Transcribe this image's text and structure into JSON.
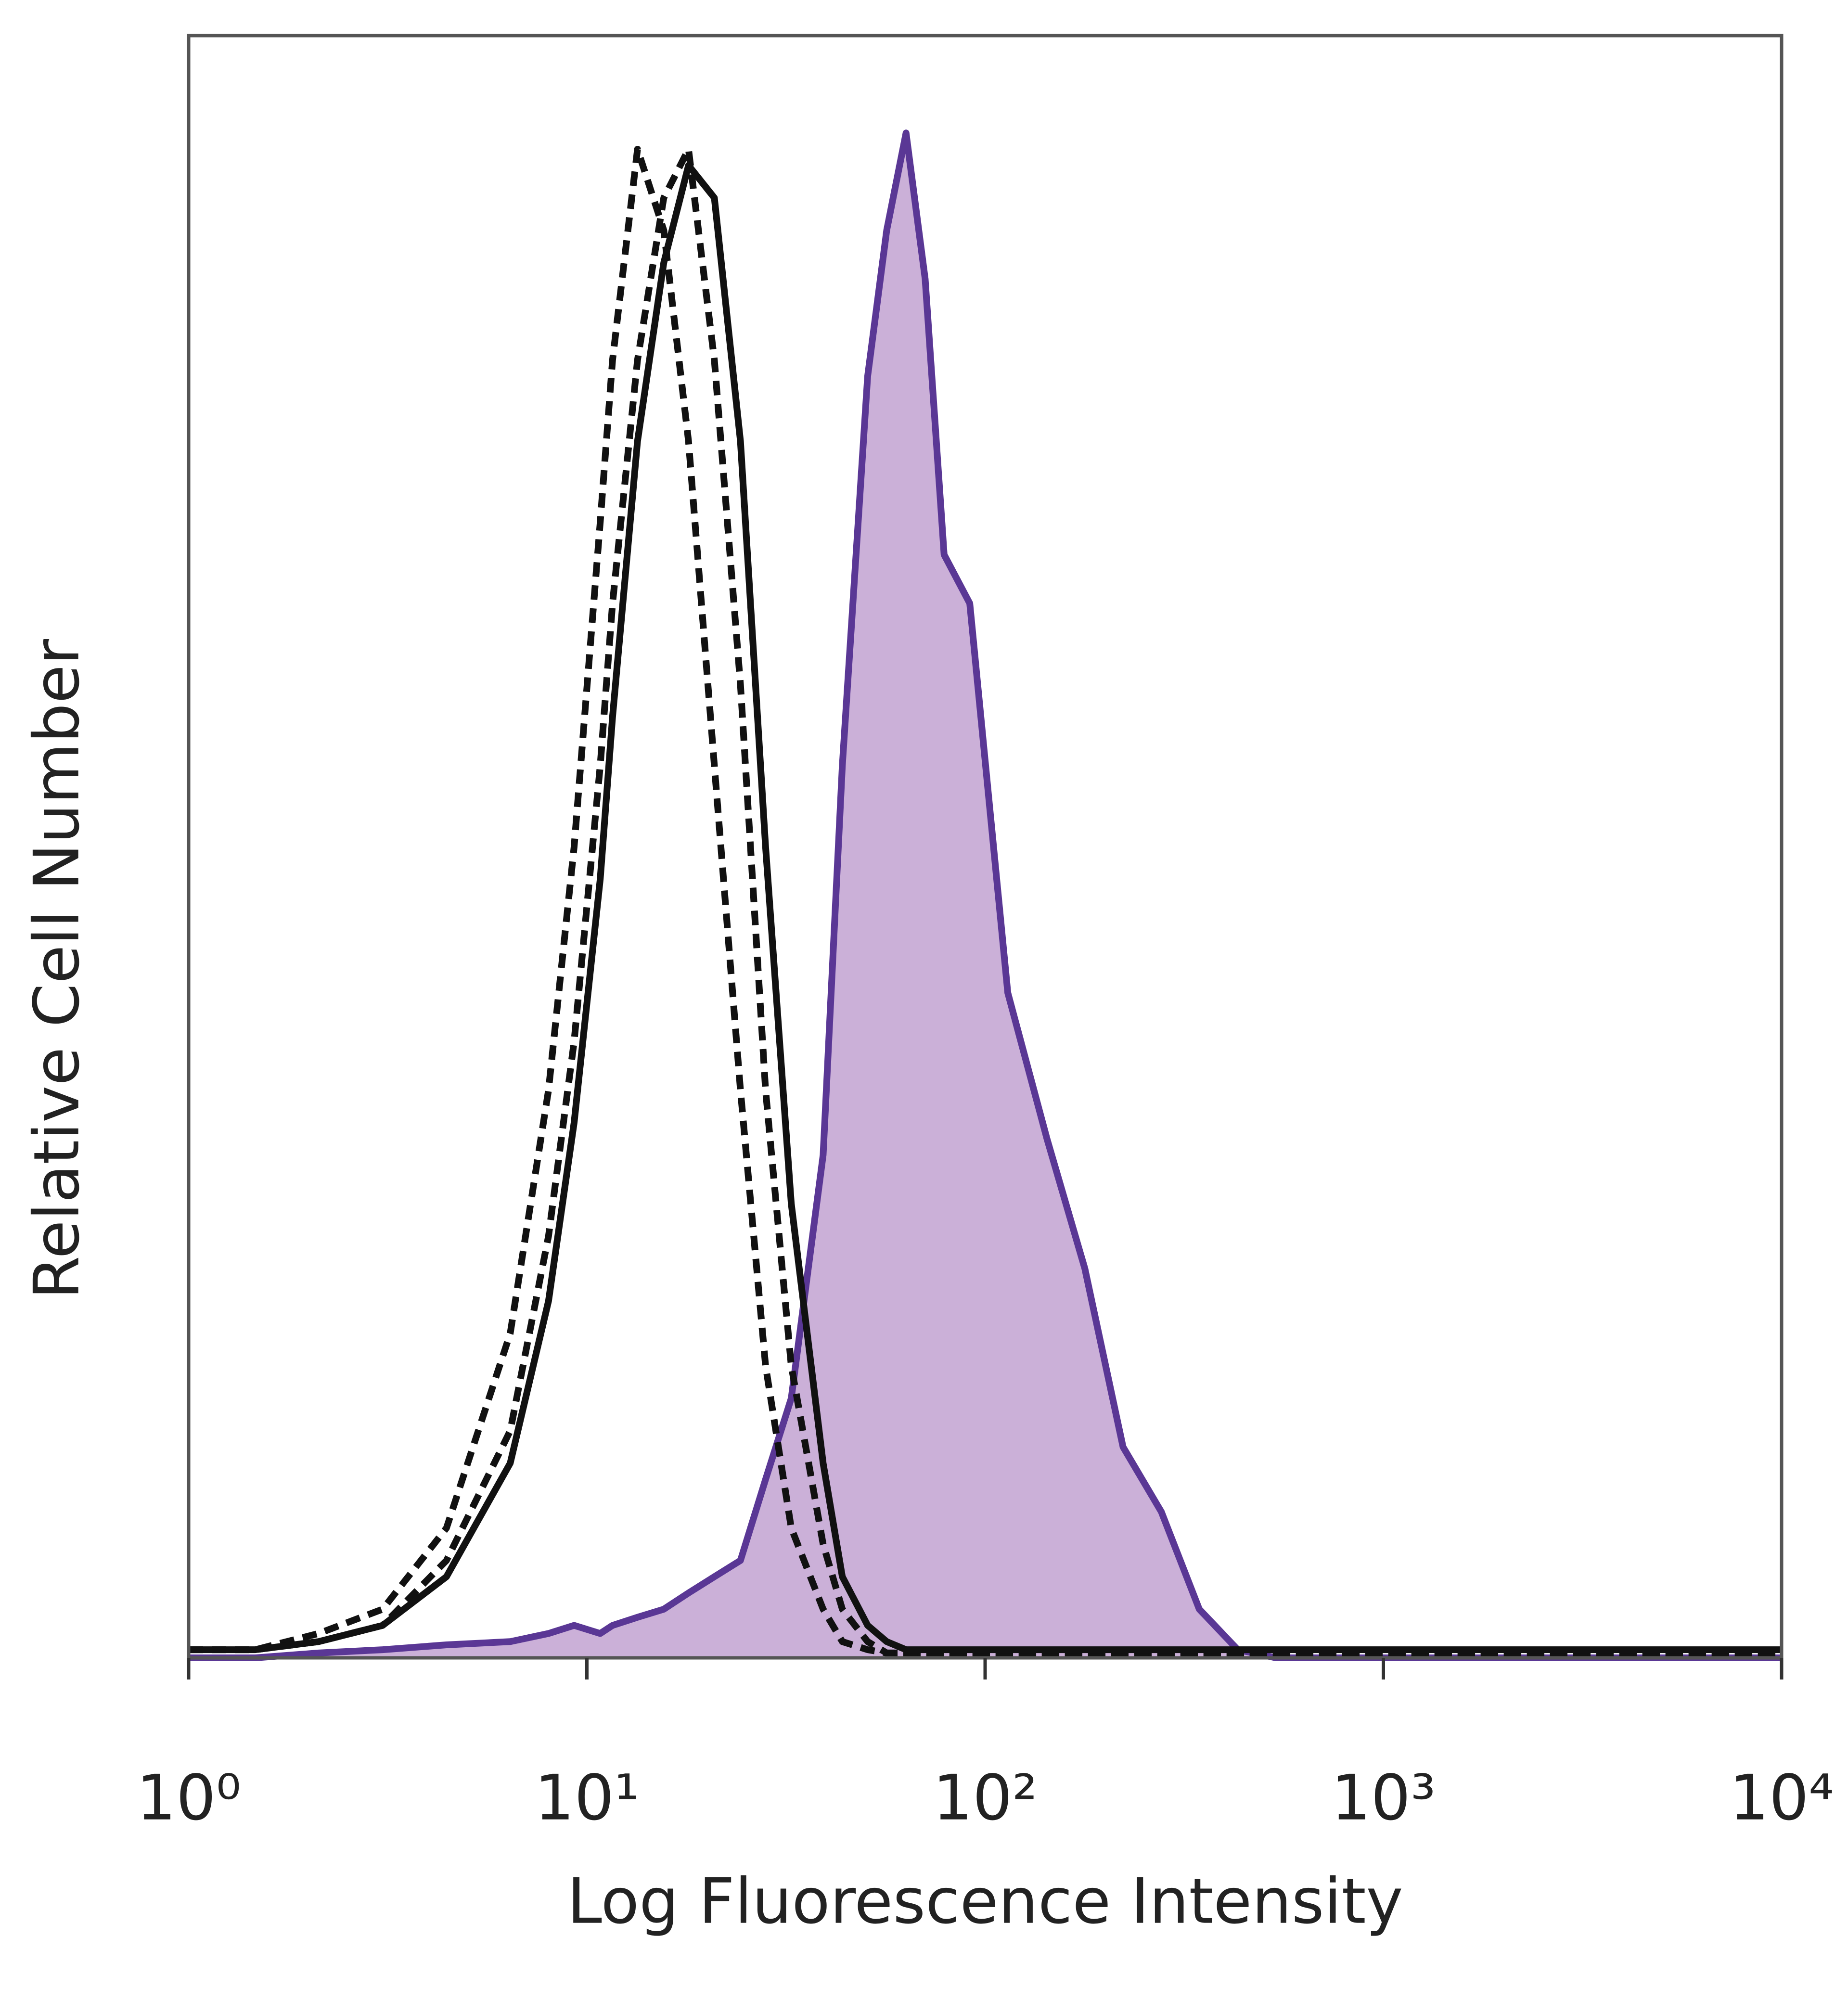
{
  "chart_data": {
    "type": "line",
    "x_label": "Log Fluorescence Intensity",
    "y_label": "Relative Cell Number",
    "x_scale": "log",
    "xlim": [
      1,
      10000
    ],
    "xticks": [
      {
        "value": 1,
        "label": "10⁰"
      },
      {
        "value": 10,
        "label": "10¹"
      },
      {
        "value": 100,
        "label": "10²"
      },
      {
        "value": 1000,
        "label": "10³"
      },
      {
        "value": 10000,
        "label": "10⁴"
      }
    ],
    "ylim": [
      0,
      100
    ],
    "x": [
      1,
      1.47,
      2.12,
      3.07,
      4.44,
      6.42,
      8.01,
      9.29,
      10.8,
      11.6,
      13.4,
      15.6,
      18.0,
      20.9,
      24.3,
      28.1,
      32.6,
      39.2,
      43.8,
      50.7,
      56.6,
      63.3,
      70.7,
      78.9,
      91.5,
      114,
      143,
      178,
      222,
      277,
      345,
      431,
      538,
      1125,
      10000
    ],
    "series": [
      {
        "color": "#5a3795",
        "fill": "#cbb0d8",
        "dashed": false,
        "values": [
          0,
          0,
          0.3,
          0.5,
          0.8,
          1,
          1.5,
          2,
          1.5,
          2,
          2.5,
          3,
          4,
          5,
          6,
          11,
          16,
          31,
          55,
          79,
          88,
          94,
          85,
          68,
          65,
          41,
          32,
          24,
          13,
          9,
          3,
          0.5,
          0,
          0,
          0
        ]
      },
      {
        "color": "#111111",
        "dashed": true,
        "values": [
          0.5,
          0.5,
          1.5,
          3,
          8,
          20,
          35,
          50,
          70,
          80,
          93,
          88,
          75,
          55,
          35,
          18,
          8,
          3,
          1,
          0.5,
          0.3,
          0.3,
          0.3,
          0.3,
          0.3,
          0.3,
          0.3,
          0.3,
          0.3,
          0.3,
          0.3,
          0.3,
          0.3,
          0.3,
          0.3
        ]
      },
      {
        "color": "#111111",
        "dashed": true,
        "values": [
          0.5,
          0.5,
          1,
          2,
          6,
          14,
          26,
          38,
          55,
          65,
          80,
          90,
          93,
          80,
          60,
          35,
          18,
          7,
          3,
          1,
          0.3,
          0.3,
          0.3,
          0.3,
          0.3,
          0.3,
          0.3,
          0.3,
          0.3,
          0.3,
          0.3,
          0.3,
          0.3,
          0.3,
          0.3
        ]
      },
      {
        "color": "#111111",
        "dashed": false,
        "values": [
          0.5,
          0.5,
          1,
          2,
          5,
          12,
          22,
          33,
          48,
          58,
          75,
          86,
          92,
          90,
          75,
          50,
          28,
          12,
          5,
          2,
          1,
          0.5,
          0.5,
          0.5,
          0.5,
          0.5,
          0.5,
          0.5,
          0.5,
          0.5,
          0.5,
          0.5,
          0.5,
          0.5,
          0.5
        ]
      }
    ]
  }
}
